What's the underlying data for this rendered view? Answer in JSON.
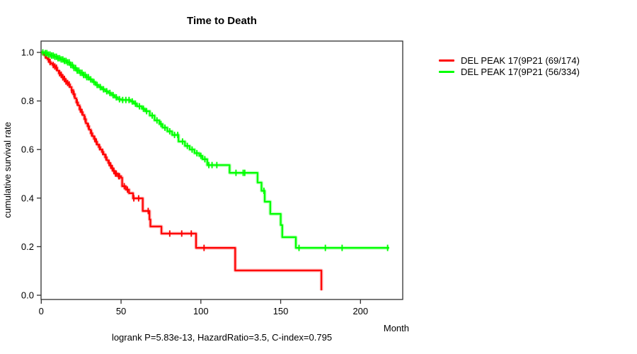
{
  "chart_data": {
    "type": "line",
    "subtype": "kaplan-meier-step-curves",
    "title": "Time to Death",
    "xlabel": "Month",
    "ylabel": "cumulative survival rate",
    "footer": "logrank P=5.83e-13, HazardRatio=3.5, C-index=0.795",
    "xlim": [
      0,
      227
    ],
    "ylim": [
      0.0,
      1.0
    ],
    "x_ticks": [
      0,
      50,
      100,
      150,
      200
    ],
    "y_ticks": [
      "0.0",
      "0.2",
      "0.4",
      "0.6",
      "0.8",
      "1.0"
    ],
    "grid": false,
    "legend_position": "right-outside",
    "axis_color": "#303030",
    "text_color": "#000000",
    "series": [
      {
        "name": "DEL PEAK 17(9P21 (69/174)",
        "color": "#ff0000",
        "events_over_total": "69/174",
        "end_time": 175.5,
        "steps": [
          [
            0,
            1.0
          ],
          [
            1,
            0.994
          ],
          [
            2,
            0.988
          ],
          [
            3,
            0.977
          ],
          [
            4,
            0.971
          ],
          [
            5,
            0.96
          ],
          [
            6,
            0.954
          ],
          [
            7,
            0.948
          ],
          [
            8,
            0.942
          ],
          [
            9,
            0.937
          ],
          [
            10,
            0.925
          ],
          [
            11,
            0.914
          ],
          [
            12,
            0.908
          ],
          [
            13,
            0.897
          ],
          [
            14,
            0.891
          ],
          [
            15,
            0.88
          ],
          [
            16,
            0.874
          ],
          [
            17,
            0.868
          ],
          [
            18,
            0.857
          ],
          [
            19,
            0.845
          ],
          [
            20,
            0.828
          ],
          [
            21,
            0.811
          ],
          [
            22,
            0.794
          ],
          [
            23,
            0.782
          ],
          [
            24,
            0.765
          ],
          [
            25,
            0.754
          ],
          [
            26,
            0.742
          ],
          [
            27,
            0.725
          ],
          [
            28,
            0.708
          ],
          [
            29,
            0.696
          ],
          [
            30,
            0.682
          ],
          [
            31,
            0.667
          ],
          [
            32,
            0.655
          ],
          [
            33,
            0.644
          ],
          [
            34,
            0.632
          ],
          [
            35,
            0.62
          ],
          [
            36,
            0.61
          ],
          [
            37,
            0.6
          ],
          [
            38,
            0.59
          ],
          [
            39,
            0.58
          ],
          [
            40,
            0.568
          ],
          [
            41,
            0.556
          ],
          [
            42,
            0.545
          ],
          [
            43,
            0.534
          ],
          [
            44,
            0.523
          ],
          [
            45,
            0.512
          ],
          [
            46,
            0.501
          ],
          [
            48,
            0.49
          ],
          [
            50,
            0.484
          ],
          [
            50.7,
            0.449
          ],
          [
            53,
            0.435
          ],
          [
            55,
            0.42
          ],
          [
            57.5,
            0.399
          ],
          [
            63.6,
            0.347
          ],
          [
            67.8,
            0.312
          ],
          [
            68.4,
            0.283
          ],
          [
            75.3,
            0.254
          ],
          [
            97,
            0.195
          ],
          [
            121.5,
            0.102
          ],
          [
            175.5,
            0.02
          ]
        ],
        "censor_times": [
          2.5,
          4.5,
          5.5,
          7.5,
          8.5,
          9.5,
          11.5,
          12.5,
          13.5,
          14.5,
          15.5,
          16.5,
          17.5,
          19,
          20.5,
          22.5,
          24.5,
          25.5,
          27.5,
          29.5,
          31.5,
          33.5,
          34.5,
          36.5,
          38.5,
          40.5,
          42.5,
          43.5,
          44.5,
          45.5,
          46.5,
          47,
          48.5,
          49,
          52,
          54,
          58,
          61,
          67,
          80.5,
          88,
          94,
          102
        ]
      },
      {
        "name": "DEL PEAK 17(9P21 (56/334)",
        "color": "#00ff00",
        "events_over_total": "56/334",
        "end_time": 218,
        "steps": [
          [
            0,
            1.0
          ],
          [
            2,
            0.997
          ],
          [
            4,
            0.991
          ],
          [
            6,
            0.987
          ],
          [
            8,
            0.982
          ],
          [
            10,
            0.976
          ],
          [
            12,
            0.971
          ],
          [
            14,
            0.965
          ],
          [
            16,
            0.959
          ],
          [
            18,
            0.948
          ],
          [
            20,
            0.936
          ],
          [
            22,
            0.925
          ],
          [
            24,
            0.916
          ],
          [
            26,
            0.907
          ],
          [
            28,
            0.898
          ],
          [
            30,
            0.889
          ],
          [
            32,
            0.878
          ],
          [
            34,
            0.866
          ],
          [
            36,
            0.857
          ],
          [
            38,
            0.848
          ],
          [
            40,
            0.84
          ],
          [
            42,
            0.833
          ],
          [
            44,
            0.824
          ],
          [
            46,
            0.815
          ],
          [
            48,
            0.807
          ],
          [
            50,
            0.804
          ],
          [
            56,
            0.798
          ],
          [
            58,
            0.789
          ],
          [
            60,
            0.778
          ],
          [
            63,
            0.768
          ],
          [
            65,
            0.758
          ],
          [
            68,
            0.74
          ],
          [
            71,
            0.72
          ],
          [
            74,
            0.705
          ],
          [
            76,
            0.69
          ],
          [
            79,
            0.675
          ],
          [
            82,
            0.66
          ],
          [
            86,
            0.633
          ],
          [
            90,
            0.615
          ],
          [
            93,
            0.6
          ],
          [
            96,
            0.585
          ],
          [
            99,
            0.574
          ],
          [
            101,
            0.56
          ],
          [
            104,
            0.536
          ],
          [
            118,
            0.504
          ],
          [
            135.5,
            0.464
          ],
          [
            138,
            0.43
          ],
          [
            140,
            0.385
          ],
          [
            143.5,
            0.335
          ],
          [
            150,
            0.289
          ],
          [
            151,
            0.239
          ],
          [
            159.5,
            0.195
          ]
        ],
        "censor_times": [
          1,
          2.5,
          3.5,
          4.5,
          5.5,
          6.5,
          7.5,
          8.5,
          9.5,
          10.5,
          11.5,
          12.5,
          13.5,
          14.5,
          15.5,
          16.5,
          17.5,
          18.5,
          19.5,
          20.5,
          21.5,
          22.5,
          23.5,
          24.5,
          25.5,
          26.5,
          27.5,
          28.5,
          29.5,
          31,
          33,
          35,
          37,
          39,
          41,
          43,
          45,
          47,
          49,
          51,
          53,
          55,
          57,
          59,
          61.5,
          64,
          66,
          69.5,
          72.5,
          75,
          77.5,
          80.5,
          83.5,
          85.5,
          88.5,
          91.5,
          94.5,
          97.5,
          100,
          102.5,
          105,
          107,
          110,
          122,
          126.5,
          127.5,
          139.5,
          161.5,
          178,
          188.5,
          217
        ]
      }
    ]
  }
}
